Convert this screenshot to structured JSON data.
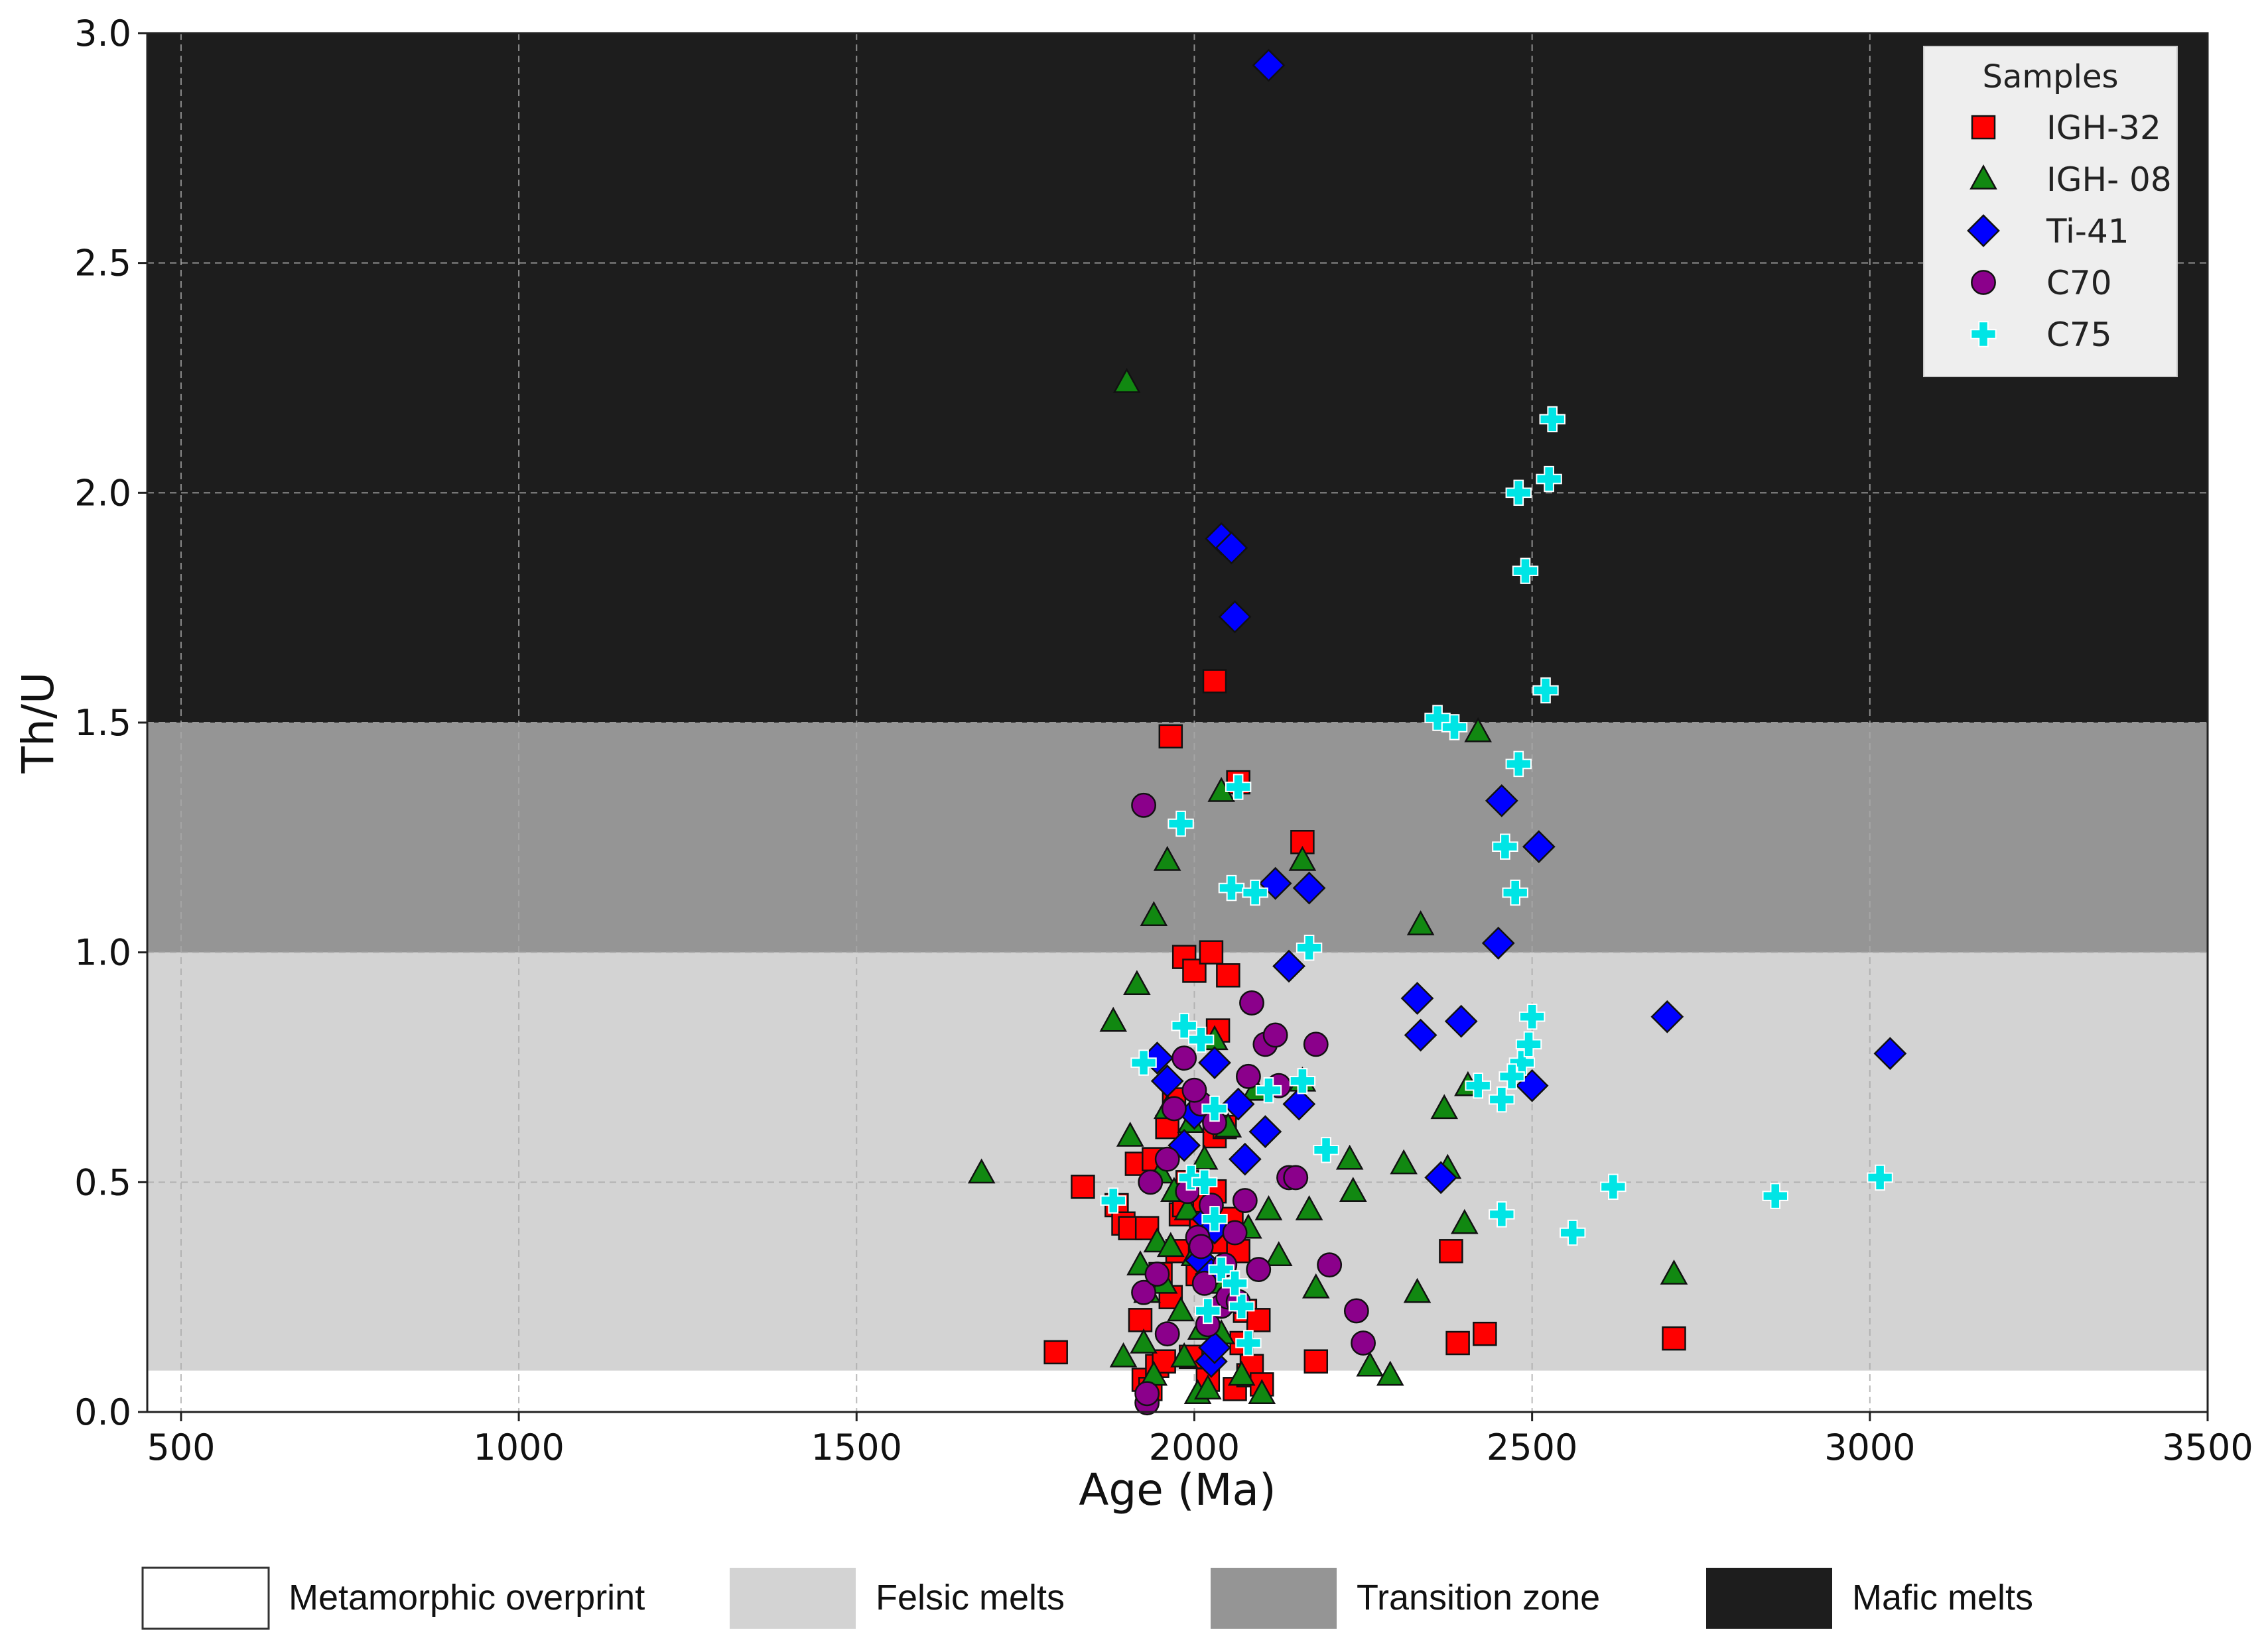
{
  "chart_data": {
    "type": "scatter",
    "xlabel": "Age (Ma)",
    "ylabel": "Th/U",
    "xlim": [
      450,
      3500
    ],
    "ylim": [
      0,
      3.0
    ],
    "x_ticks": [
      "500",
      "1000",
      "1500",
      "2000",
      "2500",
      "3000",
      "3500"
    ],
    "y_ticks": [
      "0.0",
      "0.5",
      "1.0",
      "1.5",
      "2.0",
      "2.5",
      "3.0"
    ],
    "grid": true,
    "legend_title": "Samples",
    "legend_position": "top-right",
    "zones": [
      {
        "name": "Metamorphic overprint",
        "y_range": [
          0,
          0.09
        ],
        "color": "#ffffff"
      },
      {
        "name": "Felsic melts",
        "y_range": [
          0.09,
          1.0
        ],
        "color": "#d3d3d3"
      },
      {
        "name": "Transition zone",
        "y_range": [
          1.0,
          1.5
        ],
        "color": "#959595"
      },
      {
        "name": "Mafic melts",
        "y_range": [
          1.5,
          3.0
        ],
        "color": "#1d1d1d"
      }
    ],
    "series": [
      {
        "name": "IGH-32",
        "marker": "square",
        "color": "#ff0000",
        "x": [
          1795,
          1835,
          1885,
          1895,
          1905,
          1915,
          1920,
          1925,
          1930,
          1935,
          1940,
          1945,
          1950,
          1955,
          1960,
          1965,
          1970,
          1975,
          1980,
          1985,
          1985,
          1990,
          1995,
          2000,
          2005,
          2010,
          2015,
          2020,
          2025,
          2030,
          2030,
          2035,
          2040,
          2045,
          2050,
          2055,
          2060,
          2065,
          2070,
          2075,
          2080,
          2085,
          2095,
          2100,
          2160,
          2180,
          2380,
          2390,
          2430,
          2710,
          1965,
          2030,
          2065
        ],
        "y": [
          0.13,
          0.49,
          0.45,
          0.41,
          0.4,
          0.54,
          0.2,
          0.07,
          0.4,
          0.05,
          0.55,
          0.1,
          0.3,
          0.11,
          0.62,
          0.25,
          0.68,
          0.35,
          0.43,
          0.99,
          0.45,
          0.5,
          0.12,
          0.96,
          0.3,
          0.4,
          0.46,
          0.07,
          1.0,
          0.6,
          0.48,
          0.83,
          0.37,
          0.62,
          0.95,
          0.42,
          0.05,
          0.35,
          0.15,
          0.22,
          0.08,
          0.1,
          0.2,
          0.06,
          1.24,
          0.11,
          0.35,
          0.15,
          0.17,
          0.16,
          1.47,
          1.59,
          1.37
        ]
      },
      {
        "name": "IGH- 08",
        "marker": "triangle",
        "color": "#118811",
        "x": [
          1685,
          1880,
          1900,
          1905,
          1915,
          1920,
          1925,
          1930,
          1940,
          1945,
          1950,
          1955,
          1960,
          1965,
          1970,
          1980,
          1985,
          1990,
          1995,
          2000,
          2005,
          2010,
          2015,
          2020,
          2030,
          2035,
          2040,
          2050,
          2060,
          2070,
          2080,
          2090,
          2100,
          2110,
          2125,
          2160,
          2170,
          2180,
          2230,
          2235,
          2260,
          2290,
          2310,
          2330,
          2335,
          2370,
          2375,
          2400,
          2405,
          2420,
          2710,
          1895,
          2040,
          2160,
          1960,
          1940
        ],
        "y": [
          0.52,
          0.85,
          2.24,
          0.6,
          0.93,
          0.32,
          0.15,
          0.26,
          1.08,
          0.37,
          0.52,
          0.28,
          1.2,
          0.36,
          0.48,
          0.22,
          0.12,
          0.44,
          0.63,
          0.34,
          0.04,
          0.18,
          0.55,
          0.05,
          0.81,
          0.28,
          1.35,
          0.62,
          0.25,
          0.08,
          0.4,
          0.7,
          0.04,
          0.44,
          0.34,
          1.2,
          0.44,
          0.27,
          0.55,
          0.48,
          0.1,
          0.08,
          0.54,
          0.26,
          1.06,
          0.66,
          0.53,
          0.41,
          0.71,
          1.48,
          0.3,
          0.12,
          0.17,
          0.72,
          0.66,
          0.08
        ]
      },
      {
        "name": "Ti-41",
        "marker": "diamond",
        "color": "#0000ff",
        "x": [
          2110,
          2040,
          2055,
          2060,
          2120,
          2170,
          2140,
          2155,
          2065,
          2075,
          2105,
          2030,
          1960,
          1945,
          1985,
          2000,
          2020,
          2030,
          2010,
          2025,
          2330,
          2335,
          2395,
          2450,
          2455,
          2510,
          2500,
          2365,
          2700,
          3030,
          2025,
          2030
        ],
        "y": [
          2.93,
          1.9,
          1.88,
          1.73,
          1.15,
          1.14,
          0.97,
          0.67,
          0.67,
          0.55,
          0.61,
          0.76,
          0.72,
          0.77,
          0.58,
          0.65,
          0.42,
          0.4,
          0.33,
          0.3,
          0.9,
          0.82,
          0.85,
          1.02,
          1.33,
          1.23,
          0.71,
          0.51,
          0.86,
          0.78,
          0.11,
          0.14
        ]
      },
      {
        "name": "C70",
        "marker": "circle",
        "color": "#8b008b",
        "x": [
          1925,
          1925,
          1930,
          1935,
          1945,
          1960,
          1970,
          1985,
          1990,
          2005,
          2010,
          2015,
          2020,
          2025,
          2030,
          2040,
          2045,
          2050,
          2060,
          2065,
          2075,
          2080,
          2085,
          2095,
          2105,
          2120,
          2125,
          2140,
          2150,
          2180,
          2200,
          2240,
          2250,
          1930,
          1960,
          2000,
          2010
        ],
        "y": [
          1.32,
          0.26,
          0.02,
          0.5,
          0.3,
          0.17,
          0.66,
          0.77,
          0.48,
          0.38,
          0.67,
          0.28,
          0.19,
          0.45,
          0.63,
          0.23,
          0.32,
          0.25,
          0.39,
          0.24,
          0.46,
          0.73,
          0.89,
          0.31,
          0.8,
          0.82,
          0.71,
          0.51,
          0.51,
          0.8,
          0.32,
          0.22,
          0.15,
          0.04,
          0.55,
          0.7,
          0.36
        ]
      },
      {
        "name": "C75",
        "marker": "plus",
        "color": "#00e5e5",
        "x": [
          1880,
          1925,
          1980,
          1985,
          1995,
          2010,
          2015,
          2020,
          2030,
          2040,
          2055,
          2065,
          2070,
          2080,
          2090,
          2110,
          2160,
          2170,
          2195,
          2360,
          2385,
          2420,
          2455,
          2455,
          2460,
          2475,
          2480,
          2480,
          2485,
          2490,
          2495,
          2500,
          2520,
          2525,
          2530,
          2560,
          2620,
          2860,
          3015,
          2470,
          2030,
          2060
        ],
        "y": [
          0.46,
          0.76,
          1.28,
          0.84,
          0.51,
          0.81,
          0.5,
          0.22,
          0.66,
          0.31,
          1.14,
          1.36,
          0.23,
          0.15,
          1.13,
          0.7,
          0.72,
          1.01,
          0.57,
          1.51,
          1.49,
          0.71,
          0.68,
          0.43,
          1.23,
          1.13,
          2.0,
          1.41,
          0.76,
          1.83,
          0.8,
          0.86,
          1.57,
          2.03,
          2.16,
          0.39,
          0.49,
          0.47,
          0.51,
          0.73,
          0.42,
          0.28
        ]
      }
    ]
  }
}
